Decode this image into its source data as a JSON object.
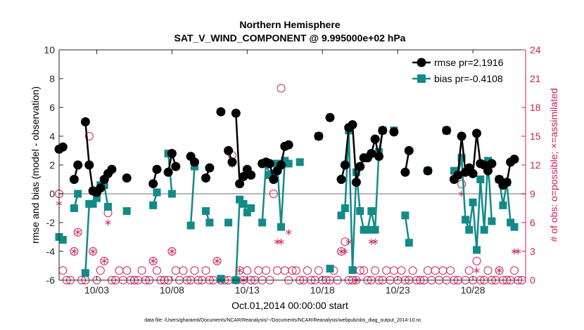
{
  "chart_data": {
    "type": "line",
    "title": "Northern Hemisphere",
    "subtitle": "SAT_V_WIND_COMPONENT @ 9.995000e+02 hPa",
    "xlabel": "Oct.01,2014 00:00:00 start",
    "ylabel": "rmse and bias (model - observation)",
    "y2label": "# of obs: o=possible; ×=assimilated",
    "footer": "data file: /Users/gharamti/Documents/NCAR/Reanalysis/~/Documents/NCAR/Reanalysis/webpub/obs_diag_output_2014-10.nc",
    "xlim": [
      0.5,
      31.5
    ],
    "ylim": [
      -6,
      10
    ],
    "y2lim": [
      0,
      24
    ],
    "xticks": [
      3,
      8,
      13,
      18,
      23,
      28
    ],
    "xtick_labels": [
      "10/03",
      "10/08",
      "10/13",
      "10/18",
      "10/23",
      "10/28"
    ],
    "yticks": [
      -6,
      -4,
      -2,
      0,
      2,
      4,
      6,
      8,
      10
    ],
    "y2ticks": [
      0,
      3,
      6,
      9,
      12,
      15,
      18,
      21,
      24
    ],
    "legend": {
      "position": "top-right",
      "rmse_label": "rmse pr=2.1916",
      "bias_label": "bias pr=-0.4108"
    },
    "colors": {
      "rmse": "#000000",
      "bias": "#138a88",
      "obs": "#cc1f5c",
      "zero_line": "#b8b8b8"
    },
    "rmse_segments": [
      [
        [
          0.5,
          3.1
        ],
        [
          0.75,
          3.25
        ]
      ],
      [
        [
          1.5,
          1.0
        ],
        [
          1.75,
          2.0
        ]
      ],
      [
        [
          2.25,
          5.0
        ],
        [
          2.5,
          2.0
        ],
        [
          2.75,
          0.2
        ],
        [
          3.0,
          0.1
        ],
        [
          3.25,
          0.4
        ],
        [
          3.5,
          1.0
        ],
        [
          3.75,
          1.4
        ],
        [
          4.0,
          1.7
        ]
      ],
      [
        [
          5.0,
          1.1
        ]
      ],
      [
        [
          6.75,
          0.7
        ],
        [
          7.0,
          1.7
        ]
      ],
      [
        [
          7.75,
          1.5
        ],
        [
          8.0,
          2.8
        ],
        [
          8.25,
          1.9
        ]
      ],
      [
        [
          9.25,
          2.6
        ],
        [
          9.5,
          2.2
        ]
      ],
      [
        [
          10.25,
          1.1
        ],
        [
          10.5,
          1.8
        ]
      ],
      [
        [
          11.25,
          5.7
        ]
      ],
      [
        [
          11.75,
          3.0
        ],
        [
          12.0,
          2.2
        ]
      ],
      [
        [
          12.25,
          5.6
        ],
        [
          12.5,
          0.7
        ],
        [
          12.75,
          1.2
        ],
        [
          13.0,
          1.7
        ],
        [
          13.25,
          1.3
        ]
      ],
      [
        [
          14.0,
          2.1
        ],
        [
          14.25,
          2.2
        ],
        [
          14.5,
          2.1
        ],
        [
          14.75,
          1.0
        ],
        [
          15.0,
          1.6
        ],
        [
          15.25,
          2.0
        ],
        [
          15.5,
          3.3
        ],
        [
          15.75,
          3.4
        ]
      ],
      [
        [
          17.75,
          4.0
        ]
      ],
      [
        [
          18.5,
          5.3
        ]
      ],
      [
        [
          19.25,
          1.0
        ],
        [
          19.5,
          2.0
        ],
        [
          19.75,
          4.6
        ],
        [
          20.0,
          4.8
        ],
        [
          20.25,
          0.8
        ],
        [
          20.5,
          1.9
        ],
        [
          20.75,
          2.5
        ],
        [
          21.0,
          2.5
        ],
        [
          21.25,
          2.8
        ],
        [
          21.5,
          3.8
        ],
        [
          21.75,
          2.6
        ],
        [
          22.0,
          4.4
        ]
      ],
      [
        [
          22.75,
          4.3
        ]
      ],
      [
        [
          23.5,
          1.5
        ],
        [
          23.75,
          3.0
        ]
      ],
      [
        [
          25.0,
          1.6
        ]
      ],
      [
        [
          26.25,
          4.4
        ]
      ],
      [
        [
          26.75,
          1.0
        ],
        [
          27.0,
          1.3
        ],
        [
          27.25,
          4.0
        ],
        [
          27.5,
          1.5
        ],
        [
          27.75,
          1.8
        ],
        [
          28.0,
          1.4
        ],
        [
          28.25,
          4.2
        ],
        [
          28.5,
          2.1
        ],
        [
          28.75,
          2.0
        ],
        [
          29.0,
          1.6
        ],
        [
          29.25,
          2.1
        ]
      ],
      [
        [
          29.75,
          1.0
        ],
        [
          30.0,
          0.6
        ],
        [
          30.25,
          0.8
        ],
        [
          30.5,
          2.2
        ],
        [
          30.75,
          2.4
        ]
      ]
    ],
    "bias_segments": [
      [
        [
          0.5,
          -3.0
        ],
        [
          0.75,
          -3.2
        ]
      ],
      [
        [
          1.5,
          -1.0
        ],
        [
          1.75,
          0.0
        ]
      ],
      [
        [
          2.25,
          -5.5
        ],
        [
          2.5,
          -0.7
        ],
        [
          2.75,
          -0.7
        ],
        [
          3.0,
          -0.3
        ],
        [
          3.25,
          0.6
        ],
        [
          3.5,
          0.6
        ],
        [
          3.75,
          -0.9
        ]
      ],
      [
        [
          5.0,
          -1.2
        ]
      ],
      [
        [
          6.75,
          -0.8
        ],
        [
          7.0,
          0.1
        ]
      ],
      [
        [
          7.75,
          2.8
        ],
        [
          8.0,
          0.0
        ]
      ],
      [
        [
          9.25,
          -2.2
        ],
        [
          9.5,
          1.9
        ]
      ],
      [
        [
          10.25,
          -1.2
        ],
        [
          10.5,
          -2.0
        ]
      ],
      [
        [
          11.25,
          -5.9
        ]
      ],
      [
        [
          11.75,
          -2.0
        ]
      ],
      [
        [
          12.25,
          -6.0
        ],
        [
          12.5,
          -0.4
        ],
        [
          12.75,
          -0.7
        ],
        [
          13.0,
          -1.3
        ],
        [
          13.25,
          -1.0
        ]
      ],
      [
        [
          14.0,
          -2.0
        ],
        [
          14.25,
          2.1
        ],
        [
          14.5,
          1.3
        ],
        [
          14.75,
          1.4
        ],
        [
          15.0,
          2.1
        ],
        [
          15.25,
          -2.3
        ],
        [
          15.5,
          2.3
        ],
        [
          15.75,
          2.1
        ]
      ],
      [
        [
          16.5,
          2.2
        ]
      ],
      [
        [
          17.75,
          4.0
        ]
      ],
      [
        [
          18.5,
          -5.2
        ]
      ],
      [
        [
          19.25,
          -1.5
        ],
        [
          19.5,
          -1.0
        ],
        [
          19.75,
          4.4
        ],
        [
          20.0,
          -5.3
        ],
        [
          20.25,
          1.5
        ],
        [
          20.5,
          -1.2
        ],
        [
          20.75,
          -2.5
        ],
        [
          21.0,
          -2.5
        ],
        [
          21.25,
          -1.2
        ],
        [
          21.5,
          -2.5
        ],
        [
          21.75,
          2.9
        ],
        [
          22.0,
          4.4
        ]
      ],
      [
        [
          22.75,
          4.4
        ]
      ],
      [
        [
          23.5,
          -1.5
        ],
        [
          23.75,
          -3.4
        ]
      ],
      [
        [
          25.0,
          1.6
        ]
      ],
      [
        [
          26.25,
          4.4
        ]
      ],
      [
        [
          26.75,
          1.6
        ],
        [
          27.0,
          1.3
        ],
        [
          27.25,
          2.5
        ],
        [
          27.5,
          -1.8
        ],
        [
          27.75,
          -2.5
        ],
        [
          28.0,
          -0.6
        ],
        [
          28.25,
          -3.9
        ],
        [
          28.5,
          1.0
        ],
        [
          28.75,
          -2.5
        ],
        [
          29.0,
          2.3
        ],
        [
          29.25,
          -1.9
        ]
      ],
      [
        [
          29.75,
          1.0
        ],
        [
          30.0,
          -0.8
        ],
        [
          30.25,
          0.8
        ],
        [
          30.5,
          -2.0
        ],
        [
          30.75,
          -2.3
        ]
      ]
    ],
    "obs_possible": [
      [
        0.5,
        9
      ],
      [
        0.75,
        1
      ],
      [
        1.0,
        0
      ],
      [
        1.25,
        0
      ],
      [
        1.5,
        3
      ],
      [
        1.75,
        5
      ],
      [
        2.0,
        0
      ],
      [
        2.25,
        0
      ],
      [
        2.5,
        15
      ],
      [
        2.75,
        3
      ],
      [
        3.0,
        0
      ],
      [
        3.25,
        1
      ],
      [
        3.5,
        2
      ],
      [
        3.75,
        7
      ],
      [
        4.0,
        0
      ],
      [
        4.25,
        0
      ],
      [
        4.5,
        1
      ],
      [
        4.75,
        0
      ],
      [
        5.0,
        1
      ],
      [
        5.25,
        0
      ],
      [
        5.5,
        0
      ],
      [
        5.75,
        0
      ],
      [
        6.0,
        1
      ],
      [
        6.25,
        0
      ],
      [
        6.5,
        0
      ],
      [
        6.75,
        2
      ],
      [
        7.0,
        1
      ],
      [
        7.25,
        0
      ],
      [
        7.5,
        0
      ],
      [
        7.75,
        0
      ],
      [
        8.0,
        3
      ],
      [
        8.25,
        1
      ],
      [
        8.5,
        0
      ],
      [
        8.75,
        1
      ],
      [
        9.0,
        0
      ],
      [
        9.25,
        0
      ],
      [
        9.5,
        1
      ],
      [
        9.75,
        0
      ],
      [
        10.0,
        0
      ],
      [
        10.25,
        1
      ],
      [
        10.5,
        0
      ],
      [
        10.75,
        0
      ],
      [
        11.0,
        2
      ],
      [
        11.25,
        0
      ],
      [
        11.5,
        0
      ],
      [
        11.75,
        0
      ],
      [
        12.0,
        13
      ],
      [
        12.25,
        0
      ],
      [
        12.5,
        1
      ],
      [
        12.75,
        0
      ],
      [
        13.0,
        1
      ],
      [
        13.25,
        0
      ],
      [
        13.5,
        0
      ],
      [
        13.75,
        1
      ],
      [
        14.0,
        0
      ],
      [
        14.25,
        1
      ],
      [
        14.5,
        0
      ],
      [
        14.75,
        9
      ],
      [
        15.0,
        1
      ],
      [
        15.25,
        20
      ],
      [
        15.5,
        1
      ],
      [
        15.75,
        0
      ],
      [
        16.0,
        1
      ],
      [
        16.25,
        1
      ],
      [
        16.5,
        0
      ],
      [
        16.75,
        0
      ],
      [
        17.0,
        1
      ],
      [
        17.25,
        0
      ],
      [
        17.5,
        0
      ],
      [
        17.75,
        1
      ],
      [
        18.0,
        0
      ],
      [
        18.25,
        0
      ],
      [
        18.5,
        0
      ],
      [
        18.75,
        1
      ],
      [
        19.0,
        0
      ],
      [
        19.25,
        3
      ],
      [
        19.5,
        4
      ],
      [
        19.75,
        0
      ],
      [
        20.0,
        0
      ],
      [
        20.25,
        0
      ],
      [
        20.5,
        1
      ],
      [
        20.75,
        1
      ],
      [
        21.0,
        0
      ],
      [
        21.25,
        0
      ],
      [
        21.5,
        1
      ],
      [
        21.75,
        0
      ],
      [
        22.0,
        0
      ],
      [
        22.25,
        1
      ],
      [
        22.5,
        0
      ],
      [
        22.75,
        1
      ],
      [
        23.0,
        0
      ],
      [
        23.25,
        1
      ],
      [
        23.5,
        0
      ],
      [
        23.75,
        0
      ],
      [
        24.0,
        1
      ],
      [
        24.25,
        0
      ],
      [
        24.5,
        0
      ],
      [
        24.75,
        0
      ],
      [
        25.0,
        1
      ],
      [
        25.25,
        0
      ],
      [
        25.5,
        1
      ],
      [
        25.75,
        0
      ],
      [
        26.0,
        1
      ],
      [
        26.25,
        0
      ],
      [
        26.5,
        1
      ],
      [
        26.75,
        0
      ],
      [
        27.0,
        0
      ],
      [
        27.25,
        10
      ],
      [
        27.5,
        0
      ],
      [
        27.75,
        1
      ],
      [
        28.0,
        0
      ],
      [
        28.25,
        2
      ],
      [
        28.5,
        0
      ],
      [
        28.75,
        0
      ],
      [
        29.0,
        1
      ],
      [
        29.25,
        0
      ],
      [
        29.5,
        0
      ],
      [
        29.75,
        1
      ],
      [
        30.0,
        0
      ],
      [
        30.25,
        0
      ],
      [
        30.5,
        0
      ],
      [
        30.75,
        1
      ],
      [
        31.0,
        0
      ],
      [
        31.25,
        0
      ]
    ],
    "obs_assimilated": [
      [
        0.5,
        8
      ],
      [
        1.5,
        3
      ],
      [
        1.75,
        5
      ],
      [
        2.5,
        12
      ],
      [
        2.75,
        3
      ],
      [
        3.5,
        2
      ],
      [
        3.75,
        6
      ],
      [
        6.75,
        2
      ],
      [
        8.0,
        3
      ],
      [
        11.0,
        2
      ],
      [
        12.0,
        12
      ],
      [
        12.5,
        1
      ],
      [
        12.75,
        0
      ],
      [
        15.0,
        4
      ],
      [
        15.25,
        4
      ],
      [
        15.75,
        5
      ],
      [
        19.25,
        3
      ],
      [
        19.5,
        3
      ],
      [
        19.75,
        4
      ],
      [
        20.0,
        1
      ],
      [
        20.25,
        0
      ],
      [
        21.25,
        4
      ],
      [
        21.5,
        4
      ],
      [
        27.25,
        9
      ],
      [
        28.25,
        1
      ],
      [
        29.75,
        1
      ],
      [
        30.75,
        3
      ],
      [
        31.0,
        3
      ]
    ]
  }
}
